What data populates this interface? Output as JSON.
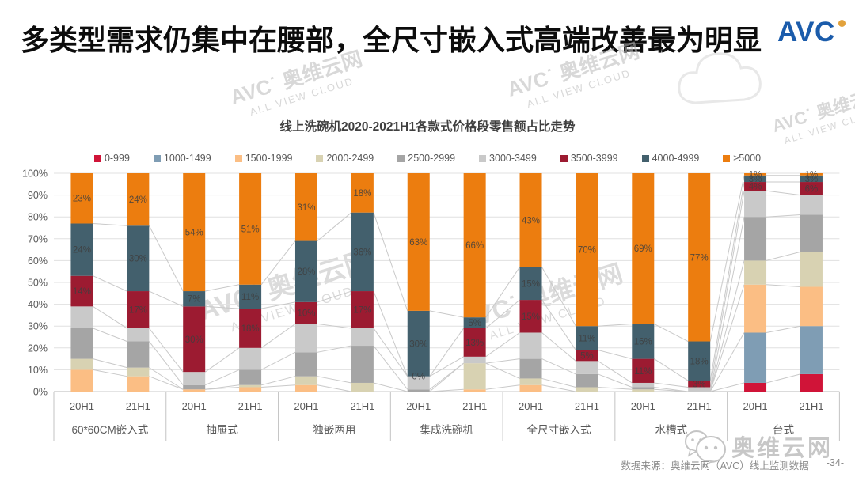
{
  "title": "多类型需求仍集中在腰部，全尺寸嵌入式高端改善最为明显",
  "logo": {
    "text": "AVC"
  },
  "watermark": {
    "brand": "AVC",
    "cn": "奥维云网",
    "en": "ALL VIEW CLOUD"
  },
  "footer": {
    "source": "数据来源：奥维云网（AVC）线上监测数据",
    "page": "-34-"
  },
  "chart_data": {
    "type": "bar",
    "subtype": "stacked-percent-column",
    "title": "线上洗碗机2020-2021H1各款式价格段零售额占比走势",
    "ylim": [
      0,
      100
    ],
    "ytick_step": 10,
    "ytick_suffix": "%",
    "grid": true,
    "legend_position": "top",
    "groups": [
      "60*60CM嵌入式",
      "抽屉式",
      "独嵌两用",
      "集成洗碗机",
      "全尺寸嵌入式",
      "水槽式",
      "台式"
    ],
    "periods": [
      "20H1",
      "21H1"
    ],
    "series": [
      {
        "name": "0-999",
        "color": "#d01438",
        "values": [
          0,
          0,
          0,
          0,
          0,
          0,
          0,
          0,
          0,
          0,
          0,
          0,
          4,
          8
        ]
      },
      {
        "name": "1000-1499",
        "color": "#7f9db4",
        "values": [
          0,
          0,
          0,
          0,
          0,
          0,
          0,
          0,
          0,
          0,
          0,
          0,
          23,
          22
        ]
      },
      {
        "name": "1500-1999",
        "color": "#fbbe84",
        "values": [
          10,
          7,
          1,
          2,
          3,
          0,
          0,
          1,
          3,
          0,
          0,
          0,
          22,
          18
        ]
      },
      {
        "name": "2000-2499",
        "color": "#d8d2b2",
        "values": [
          5,
          4,
          0,
          1,
          4,
          4,
          0,
          12,
          3,
          2,
          1,
          0,
          11,
          16
        ]
      },
      {
        "name": "2500-2999",
        "color": "#a5a5a5",
        "values": [
          14,
          12,
          2,
          7,
          11,
          17,
          1,
          0,
          9,
          6,
          1,
          0,
          20,
          17
        ]
      },
      {
        "name": "3000-3499",
        "color": "#c9c9c9",
        "values": [
          10,
          6,
          6,
          10,
          13,
          8,
          6,
          3,
          12,
          6,
          2,
          2,
          12,
          9
        ]
      },
      {
        "name": "3500-3999",
        "color": "#9c1b31",
        "values": [
          14,
          17,
          30,
          18,
          10,
          17,
          0,
          13,
          15,
          5,
          11,
          3,
          4,
          6
        ]
      },
      {
        "name": "4000-4999",
        "color": "#43606d",
        "values": [
          24,
          30,
          7,
          11,
          28,
          36,
          30,
          5,
          15,
          11,
          16,
          18,
          3,
          3
        ]
      },
      {
        "name": "≥5000",
        "color": "#ec7d0f",
        "values": [
          23,
          24,
          54,
          51,
          31,
          18,
          63,
          66,
          43,
          70,
          69,
          77,
          1,
          1
        ]
      }
    ],
    "labeled_series": [
      "3500-3999",
      "4000-4999",
      "≥5000"
    ],
    "label_suffix": "%",
    "label_color": "#3f3f3f",
    "colors": {
      "gridline": "#e0e0e0",
      "axis_line": "#b7b7b7",
      "series_line": "#c9c9c9",
      "tick_text": "#595959",
      "separator": "#c3c3c3"
    }
  }
}
